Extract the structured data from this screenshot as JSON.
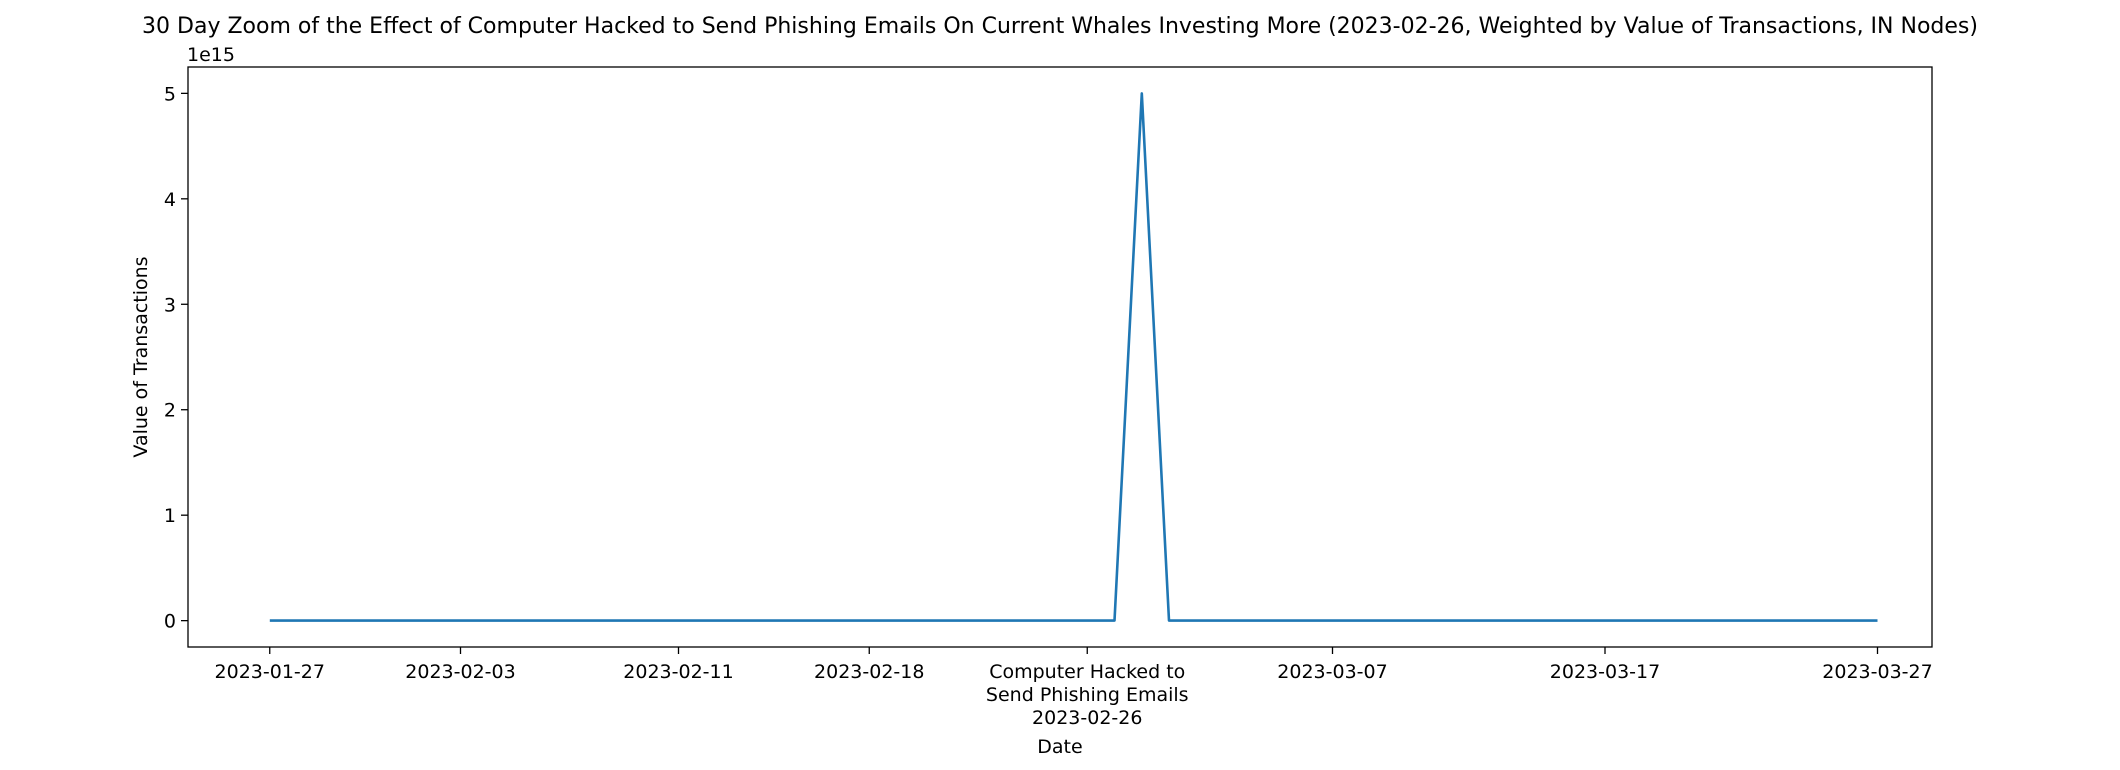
{
  "chart_data": {
    "type": "line",
    "title": "30 Day Zoom of the Effect of Computer Hacked to Send Phishing Emails On Current Whales Investing More (2023-02-26, Weighted by Value of Transactions, IN Nodes)",
    "xlabel": "Date",
    "ylabel": "Value of Transactions",
    "y_offset_label": "1e15",
    "y_scale_factor": 1000000000000000.0,
    "xlim": [
      "2023-01-24",
      "2023-03-29"
    ],
    "ylim": [
      -250000000000000.0,
      5250000000000000.0
    ],
    "x_ticks": [
      {
        "date": "2023-01-27",
        "label": "2023-01-27"
      },
      {
        "date": "2023-02-03",
        "label": "2023-02-03"
      },
      {
        "date": "2023-02-11",
        "label": "2023-02-11"
      },
      {
        "date": "2023-02-18",
        "label": "2023-02-18"
      },
      {
        "date": "2023-02-26",
        "label": "Computer Hacked to\nSend Phishing Emails\n2023-02-26"
      },
      {
        "date": "2023-03-07",
        "label": "2023-03-07"
      },
      {
        "date": "2023-03-17",
        "label": "2023-03-17"
      },
      {
        "date": "2023-03-27",
        "label": "2023-03-27"
      }
    ],
    "y_ticks": [
      {
        "value": 0,
        "label": "0"
      },
      {
        "value": 1000000000000000.0,
        "label": "1"
      },
      {
        "value": 2000000000000000.0,
        "label": "2"
      },
      {
        "value": 3000000000000000.0,
        "label": "3"
      },
      {
        "value": 4000000000000000.0,
        "label": "4"
      },
      {
        "value": 5000000000000000.0,
        "label": "5"
      }
    ],
    "grid": false,
    "legend": "none",
    "series": [
      {
        "color": "#1f77b4",
        "points": [
          {
            "x": "2023-01-27",
            "y": 0
          },
          {
            "x": "2023-02-27",
            "y": 0
          },
          {
            "x": "2023-02-28",
            "y": 5000000000000000.0
          },
          {
            "x": "2023-03-01",
            "y": 0
          },
          {
            "x": "2023-03-27",
            "y": 0
          }
        ]
      }
    ]
  }
}
